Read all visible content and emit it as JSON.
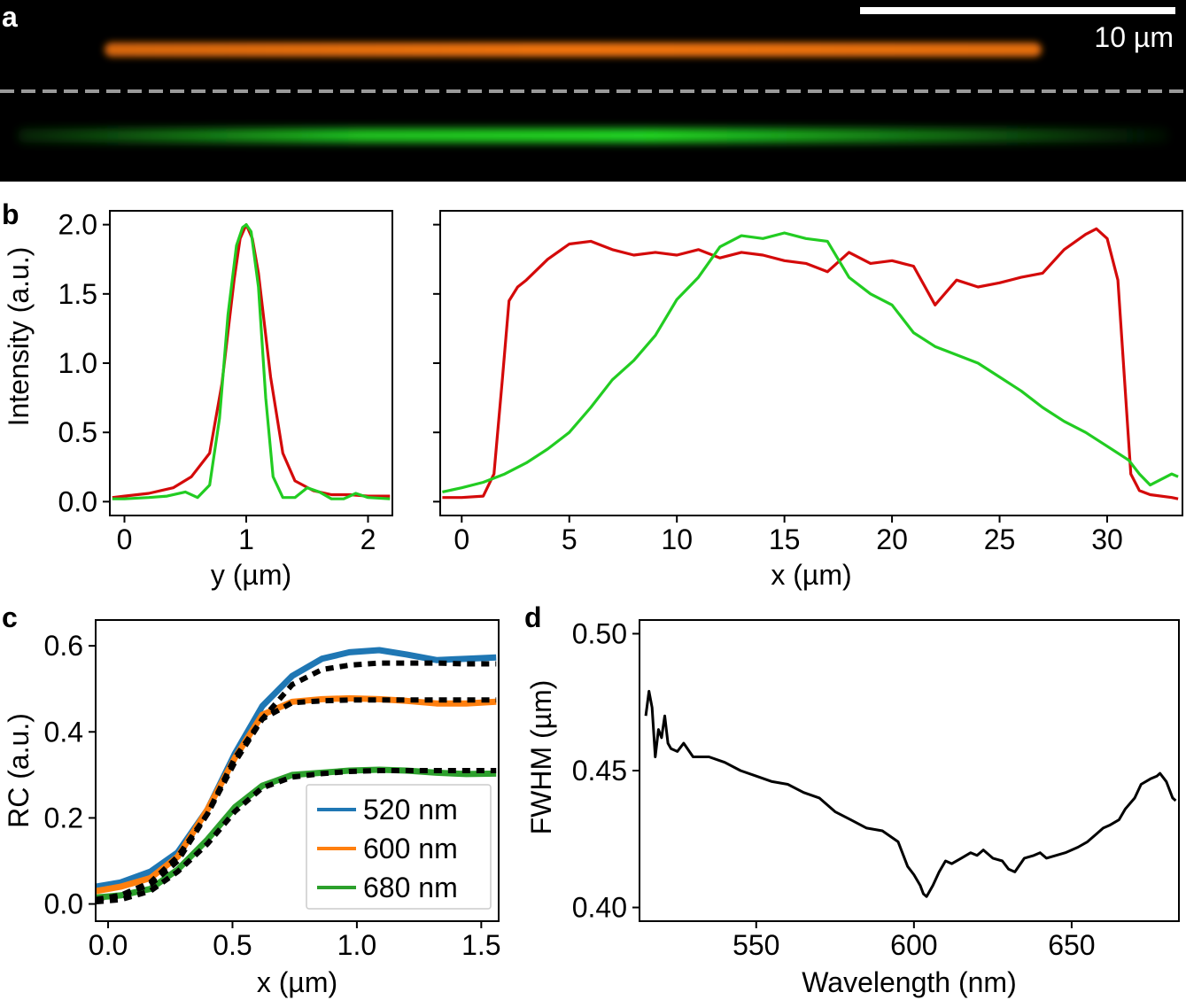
{
  "panel_labels": {
    "a": "a",
    "b": "b",
    "c": "c",
    "d": "d"
  },
  "panel_a": {
    "scale_bar_label": "10 µm",
    "scale_bar_um": 10,
    "image_width_um": 34.7,
    "rods": [
      {
        "name": "orange",
        "color": "#ff7a10"
      },
      {
        "name": "green",
        "color": "#22e024"
      }
    ]
  },
  "chart_data": [
    {
      "id": "b-left",
      "type": "line",
      "xlabel": "y (µm)",
      "ylabel": "Intensity (a.u.)",
      "xlim": [
        -0.12,
        2.2
      ],
      "ylim": [
        -0.1,
        2.1
      ],
      "xticks": [
        0,
        1,
        2
      ],
      "xtick_labels": [
        "0",
        "1",
        "2"
      ],
      "yticks": [
        0.0,
        0.5,
        1.0,
        1.5,
        2.0
      ],
      "ytick_labels": [
        "0.0",
        "0.5",
        "1.0",
        "1.5",
        "2.0"
      ],
      "series": [
        {
          "color": "#d40a0a",
          "x": [
            -0.1,
            0,
            0.2,
            0.4,
            0.55,
            0.7,
            0.8,
            0.9,
            0.95,
            1.0,
            1.05,
            1.1,
            1.2,
            1.3,
            1.4,
            1.55,
            1.7,
            1.85,
            2.0,
            2.18
          ],
          "y": [
            0.03,
            0.04,
            0.06,
            0.1,
            0.18,
            0.35,
            0.85,
            1.6,
            1.9,
            2.0,
            1.9,
            1.65,
            0.9,
            0.35,
            0.15,
            0.08,
            0.05,
            0.05,
            0.04,
            0.04
          ]
        },
        {
          "color": "#22cc22",
          "x": [
            -0.1,
            0,
            0.2,
            0.35,
            0.5,
            0.6,
            0.7,
            0.78,
            0.85,
            0.92,
            0.97,
            1.0,
            1.04,
            1.1,
            1.16,
            1.22,
            1.3,
            1.4,
            1.5,
            1.6,
            1.7,
            1.8,
            1.9,
            2.0,
            2.18
          ],
          "y": [
            0.02,
            0.02,
            0.03,
            0.04,
            0.07,
            0.03,
            0.12,
            0.6,
            1.35,
            1.85,
            1.98,
            2.0,
            1.95,
            1.55,
            0.75,
            0.18,
            0.03,
            0.03,
            0.1,
            0.07,
            0.02,
            0.02,
            0.06,
            0.03,
            0.02
          ]
        }
      ]
    },
    {
      "id": "b-right",
      "type": "line",
      "xlabel": "x (µm)",
      "xlim": [
        -1,
        33.5
      ],
      "ylim": [
        -0.1,
        2.1
      ],
      "xticks": [
        0,
        5,
        10,
        15,
        20,
        25,
        30
      ],
      "xtick_labels": [
        "0",
        "5",
        "10",
        "15",
        "20",
        "25",
        "30"
      ],
      "yticks": [
        0.0,
        0.5,
        1.0,
        1.5,
        2.0
      ],
      "series": [
        {
          "color": "#d40a0a",
          "x": [
            -0.9,
            0,
            1,
            1.5,
            1.9,
            2.2,
            2.6,
            3,
            4,
            5,
            6,
            7,
            8,
            9,
            10,
            11,
            12,
            13,
            14,
            15,
            16,
            17,
            18,
            19,
            20,
            20.5,
            21,
            22,
            23,
            24,
            25,
            26,
            27,
            28,
            29,
            29.5,
            30,
            30.5,
            30.8,
            31.1,
            31.5,
            32,
            33,
            33.3
          ],
          "y": [
            0.03,
            0.03,
            0.04,
            0.2,
            0.9,
            1.45,
            1.55,
            1.6,
            1.75,
            1.86,
            1.88,
            1.82,
            1.78,
            1.8,
            1.78,
            1.82,
            1.76,
            1.8,
            1.78,
            1.74,
            1.72,
            1.66,
            1.8,
            1.72,
            1.74,
            1.72,
            1.7,
            1.42,
            1.6,
            1.55,
            1.58,
            1.62,
            1.65,
            1.82,
            1.93,
            1.97,
            1.9,
            1.6,
            0.9,
            0.2,
            0.08,
            0.05,
            0.03,
            0.02
          ]
        },
        {
          "color": "#22cc22",
          "x": [
            -0.9,
            0,
            1,
            2,
            3,
            4,
            5,
            6,
            7,
            8,
            9,
            10,
            11,
            12,
            13,
            14,
            15,
            16,
            17,
            18,
            19,
            20,
            21,
            22,
            23,
            24,
            25,
            26,
            27,
            28,
            29,
            30,
            31,
            31.5,
            32,
            33,
            33.3
          ],
          "y": [
            0.07,
            0.1,
            0.14,
            0.2,
            0.28,
            0.38,
            0.5,
            0.68,
            0.88,
            1.02,
            1.2,
            1.46,
            1.62,
            1.84,
            1.92,
            1.9,
            1.94,
            1.9,
            1.88,
            1.62,
            1.5,
            1.42,
            1.22,
            1.12,
            1.06,
            1.0,
            0.9,
            0.8,
            0.68,
            0.58,
            0.5,
            0.4,
            0.3,
            0.2,
            0.12,
            0.2,
            0.18
          ]
        }
      ]
    },
    {
      "id": "c",
      "type": "line",
      "xlabel": "x (µm)",
      "ylabel": "RC (a.u.)",
      "xlim": [
        -0.05,
        1.57
      ],
      "ylim": [
        -0.04,
        0.66
      ],
      "xticks": [
        0.0,
        0.5,
        1.0,
        1.5
      ],
      "xtick_labels": [
        "0.0",
        "0.5",
        "1.0",
        "1.5"
      ],
      "yticks": [
        0.0,
        0.2,
        0.4,
        0.6
      ],
      "ytick_labels": [
        "0.0",
        "0.2",
        "0.4",
        "0.6"
      ],
      "legend_position": "bottom-right",
      "x": [
        -0.05,
        0.05,
        0.17,
        0.28,
        0.4,
        0.51,
        0.62,
        0.74,
        0.86,
        0.97,
        1.09,
        1.2,
        1.32,
        1.44,
        1.56
      ],
      "series": [
        {
          "name": "520 nm",
          "color": "#1f77b4",
          "values": [
            0.04,
            0.05,
            0.075,
            0.12,
            0.22,
            0.35,
            0.46,
            0.53,
            0.57,
            0.585,
            0.59,
            0.58,
            0.567,
            0.57,
            0.573
          ]
        },
        {
          "name": "600 nm",
          "color": "#ff7f0e",
          "values": [
            0.03,
            0.04,
            0.06,
            0.11,
            0.22,
            0.34,
            0.44,
            0.47,
            0.476,
            0.478,
            0.476,
            0.472,
            0.466,
            0.466,
            0.47
          ]
        },
        {
          "name": "680 nm",
          "color": "#2ca02c",
          "values": [
            0.015,
            0.02,
            0.035,
            0.08,
            0.15,
            0.225,
            0.275,
            0.3,
            0.305,
            0.31,
            0.312,
            0.31,
            0.305,
            0.302,
            0.303
          ]
        }
      ],
      "fits": [
        {
          "values": [
            0.01,
            0.02,
            0.05,
            0.11,
            0.21,
            0.34,
            0.43,
            0.51,
            0.545,
            0.555,
            0.56,
            0.56,
            0.56,
            0.558,
            0.558
          ]
        },
        {
          "values": [
            0.01,
            0.02,
            0.045,
            0.1,
            0.21,
            0.33,
            0.43,
            0.468,
            0.472,
            0.474,
            0.474,
            0.474,
            0.474,
            0.474,
            0.474
          ]
        },
        {
          "values": [
            0.005,
            0.01,
            0.03,
            0.075,
            0.14,
            0.215,
            0.27,
            0.295,
            0.303,
            0.308,
            0.31,
            0.31,
            0.31,
            0.31,
            0.31
          ]
        }
      ]
    },
    {
      "id": "d",
      "type": "line",
      "xlabel": "Wavelength (nm)",
      "ylabel": "FWHM (µm)",
      "xlim": [
        513,
        684
      ],
      "ylim": [
        0.395,
        0.505
      ],
      "xticks": [
        550,
        600,
        650
      ],
      "xtick_labels": [
        "550",
        "600",
        "650"
      ],
      "yticks": [
        0.4,
        0.45,
        0.5
      ],
      "ytick_labels": [
        "0.40",
        "0.45",
        "0.50"
      ],
      "series": [
        {
          "color": "#000000",
          "x": [
            515,
            516,
            517,
            518,
            519,
            520,
            521,
            522,
            523,
            525,
            527,
            530,
            535,
            540,
            545,
            550,
            555,
            560,
            565,
            570,
            575,
            580,
            585,
            590,
            595,
            598,
            600,
            602,
            603,
            604,
            606,
            608,
            610,
            612,
            615,
            618,
            620,
            622,
            625,
            628,
            630,
            632,
            635,
            638,
            640,
            642,
            645,
            648,
            650,
            652,
            655,
            658,
            660,
            662,
            665,
            667,
            670,
            672,
            675,
            677,
            678,
            680,
            682,
            683
          ],
          "y": [
            0.47,
            0.479,
            0.473,
            0.455,
            0.465,
            0.462,
            0.47,
            0.46,
            0.458,
            0.457,
            0.46,
            0.455,
            0.455,
            0.453,
            0.45,
            0.448,
            0.446,
            0.445,
            0.442,
            0.44,
            0.435,
            0.432,
            0.429,
            0.428,
            0.424,
            0.415,
            0.412,
            0.408,
            0.405,
            0.404,
            0.408,
            0.413,
            0.417,
            0.416,
            0.418,
            0.42,
            0.419,
            0.421,
            0.418,
            0.417,
            0.414,
            0.413,
            0.418,
            0.419,
            0.42,
            0.418,
            0.419,
            0.42,
            0.421,
            0.422,
            0.424,
            0.427,
            0.429,
            0.43,
            0.432,
            0.436,
            0.44,
            0.445,
            0.447,
            0.448,
            0.449,
            0.446,
            0.44,
            0.439
          ]
        }
      ]
    }
  ]
}
